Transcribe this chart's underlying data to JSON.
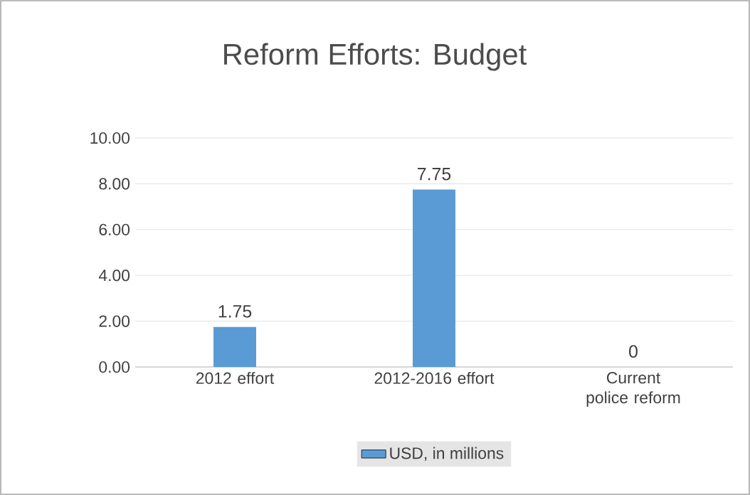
{
  "chart_data": {
    "type": "bar",
    "title": "Reform Efforts: Budget",
    "categories": [
      "2012 effort",
      "2012-2016 effort",
      "Current police reform"
    ],
    "series": [
      {
        "name": "USD, in millions",
        "color": "#5b9bd5",
        "values": [
          1.75,
          7.75,
          0
        ]
      }
    ],
    "ylim": [
      0,
      10
    ],
    "yticks": [
      {
        "value": 0,
        "label": "0.00"
      },
      {
        "value": 2,
        "label": "2.00"
      },
      {
        "value": 4,
        "label": "4.00"
      },
      {
        "value": 6,
        "label": "6.00"
      },
      {
        "value": 8,
        "label": "8.00"
      },
      {
        "value": 10,
        "label": "10.00"
      }
    ],
    "grid": "y",
    "legend": "bottom",
    "data_labels": true
  }
}
